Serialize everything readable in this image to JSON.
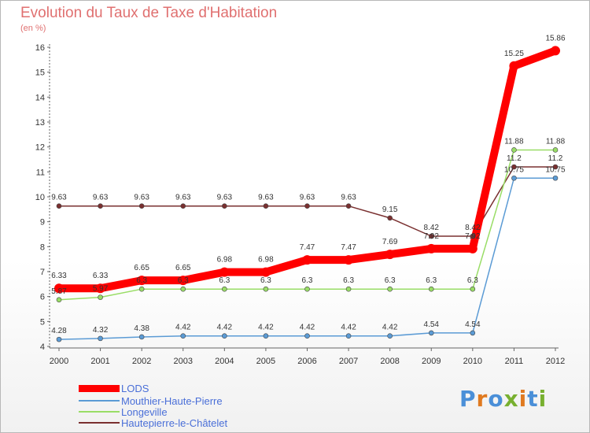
{
  "chart_data": {
    "type": "line",
    "title": "Evolution du Taux de Taxe d'Habitation",
    "ylabel": "(en %)",
    "xlabel": "",
    "x": [
      "2000",
      "2001",
      "2002",
      "2003",
      "2004",
      "2005",
      "2006",
      "2007",
      "2008",
      "2009",
      "2010",
      "2011",
      "2012"
    ],
    "ylim": [
      4,
      16
    ],
    "yticks": [
      "4",
      "5",
      "6",
      "7",
      "8",
      "9",
      "10",
      "11",
      "12",
      "13",
      "14",
      "15",
      "16"
    ],
    "grid": false,
    "legend_position": "bottom-left",
    "series": [
      {
        "name": "LODS",
        "color": "#ff0000",
        "values": [
          6.33,
          6.33,
          6.65,
          6.65,
          6.98,
          6.98,
          7.47,
          7.47,
          7.69,
          7.92,
          7.92,
          15.25,
          15.86
        ],
        "labels": [
          "6.33",
          "6.33",
          "6.65",
          "6.65",
          "6.98",
          "6.98",
          "7.47",
          "7.47",
          "7.69",
          "7.92",
          "7.92",
          "15.25",
          "15.86"
        ]
      },
      {
        "name": "Mouthier-Haute-Pierre",
        "color": "#5b9bd5",
        "values": [
          4.28,
          4.32,
          4.38,
          4.42,
          4.42,
          4.42,
          4.42,
          4.42,
          4.42,
          4.54,
          4.54,
          10.75,
          10.75
        ],
        "labels": [
          "4.28",
          "4.32",
          "4.38",
          "4.42",
          "4.42",
          "4.42",
          "4.42",
          "4.42",
          "4.42",
          "4.54",
          "4.54",
          "10.75",
          "10.75"
        ]
      },
      {
        "name": "Longeville",
        "color": "#99dd66",
        "values": [
          5.87,
          5.97,
          6.3,
          6.3,
          6.3,
          6.3,
          6.3,
          6.3,
          6.3,
          6.3,
          6.3,
          11.88,
          11.88
        ],
        "labels": [
          "5.87",
          "5.97",
          "6.3",
          "6.3",
          "6.3",
          "6.3",
          "6.3",
          "6.3",
          "6.3",
          "6.3",
          "6.3",
          "11.88",
          "11.88"
        ]
      },
      {
        "name": "Hautepierre-le-Châtelet",
        "color": "#7a3030",
        "values": [
          9.63,
          9.63,
          9.63,
          9.63,
          9.63,
          9.63,
          9.63,
          9.63,
          9.15,
          8.42,
          8.42,
          11.2,
          11.2
        ],
        "labels": [
          "9.63",
          "9.63",
          "9.63",
          "9.63",
          "9.63",
          "9.63",
          "9.63",
          "9.63",
          "9.15",
          "8.42",
          "8.42",
          "11.2",
          "11.2"
        ]
      }
    ]
  },
  "logo": {
    "text": "Proxiti",
    "colors": [
      "#4a8fd8",
      "#e07a20",
      "#4a8fd8",
      "#78b030",
      "#e07a20",
      "#4a8fd8",
      "#78b030"
    ]
  }
}
